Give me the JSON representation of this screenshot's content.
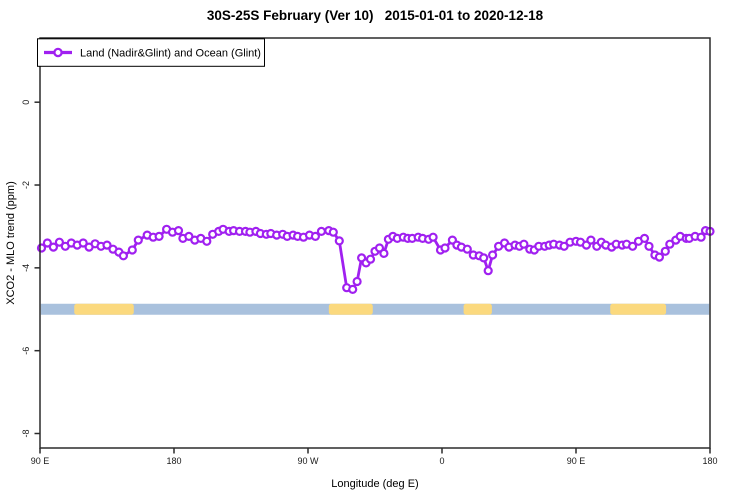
{
  "title": "30S-25S February (Ver 10)   2015-01-01 to 2020-12-18",
  "legend": {
    "label": "Land (Nadir&Glint) and Ocean (Glint)",
    "marker_color": "#A020F0"
  },
  "axes": {
    "x_label": "Longitude (deg E)",
    "y_label": "XCO2 - MLO trend (ppm)",
    "x_ticks": [
      {
        "x": 90,
        "label": "90 E"
      },
      {
        "x": 180,
        "label": "180"
      },
      {
        "x": 270,
        "label": "90 W"
      },
      {
        "x": 360,
        "label": "0"
      },
      {
        "x": 450,
        "label": "90 E"
      },
      {
        "x": 540,
        "label": "180"
      }
    ],
    "y_ticks": [
      {
        "y": 0,
        "label": "0"
      },
      {
        "y": -2,
        "label": "-2"
      },
      {
        "y": -4,
        "label": "-4"
      },
      {
        "y": -6,
        "label": "-6"
      },
      {
        "y": -8,
        "label": "-8"
      }
    ]
  },
  "chart_data": {
    "type": "line",
    "title": "30S-25S February (Ver 10)   2015-01-01 to 2020-12-18",
    "xlabel": "Longitude (deg E)",
    "ylabel": "XCO2 - MLO trend (ppm)",
    "xlim": [
      90,
      540
    ],
    "ylim": [
      -8.35,
      1.55
    ],
    "x_axis_note": "x axis is longitude wrapping eastward: 90E, 180, 90W, 0, 90E, 180",
    "grid": false,
    "legend_position": "top-left",
    "series": [
      {
        "name": "Land (Nadir&Glint) and Ocean (Glint)",
        "color": "#A020F0",
        "marker": "open-circle",
        "x": [
          91,
          95,
          99,
          103,
          107,
          111,
          115,
          119,
          123,
          127,
          131,
          135,
          139,
          143,
          146,
          152,
          156,
          162,
          166,
          170,
          175,
          179,
          183,
          186,
          190,
          194,
          198,
          202,
          206,
          210,
          213,
          217,
          220,
          224,
          228,
          231,
          235,
          238,
          242,
          245,
          249,
          253,
          256,
          260,
          263,
          267,
          271,
          275,
          279,
          284,
          287,
          291,
          296,
          300,
          303,
          306,
          309,
          312,
          315,
          318,
          321,
          324,
          327,
          330,
          334,
          337,
          340,
          344,
          347,
          351,
          354,
          359,
          362,
          367,
          370,
          373,
          377,
          381,
          385,
          388,
          391,
          394,
          398,
          402,
          405,
          409,
          412,
          415,
          419,
          422,
          425,
          429,
          432,
          435,
          439,
          442,
          446,
          450,
          453,
          457,
          460,
          464,
          467,
          470,
          474,
          477,
          481,
          484,
          488,
          492,
          496,
          499,
          503,
          506,
          510,
          513,
          517,
          520,
          524,
          526,
          530,
          534,
          537,
          540
        ],
        "y": [
          -3.52,
          -3.4,
          -3.5,
          -3.38,
          -3.48,
          -3.4,
          -3.45,
          -3.4,
          -3.5,
          -3.42,
          -3.48,
          -3.45,
          -3.55,
          -3.62,
          -3.71,
          -3.57,
          -3.33,
          -3.21,
          -3.26,
          -3.24,
          -3.07,
          -3.14,
          -3.1,
          -3.29,
          -3.24,
          -3.33,
          -3.29,
          -3.36,
          -3.19,
          -3.12,
          -3.07,
          -3.12,
          -3.1,
          -3.12,
          -3.12,
          -3.14,
          -3.12,
          -3.17,
          -3.19,
          -3.17,
          -3.21,
          -3.19,
          -3.24,
          -3.21,
          -3.24,
          -3.26,
          -3.21,
          -3.24,
          -3.12,
          -3.1,
          -3.14,
          -3.35,
          -4.48,
          -4.52,
          -4.33,
          -3.76,
          -3.88,
          -3.79,
          -3.6,
          -3.52,
          -3.65,
          -3.31,
          -3.24,
          -3.29,
          -3.26,
          -3.29,
          -3.29,
          -3.26,
          -3.29,
          -3.31,
          -3.26,
          -3.57,
          -3.52,
          -3.33,
          -3.45,
          -3.5,
          -3.55,
          -3.69,
          -3.71,
          -3.76,
          -4.07,
          -3.69,
          -3.48,
          -3.4,
          -3.5,
          -3.45,
          -3.48,
          -3.43,
          -3.55,
          -3.57,
          -3.48,
          -3.48,
          -3.45,
          -3.43,
          -3.45,
          -3.48,
          -3.38,
          -3.36,
          -3.38,
          -3.45,
          -3.33,
          -3.48,
          -3.38,
          -3.45,
          -3.5,
          -3.43,
          -3.45,
          -3.43,
          -3.48,
          -3.36,
          -3.29,
          -3.48,
          -3.69,
          -3.74,
          -3.6,
          -3.43,
          -3.33,
          -3.24,
          -3.29,
          -3.29,
          -3.24,
          -3.26,
          -3.1,
          -3.12
        ]
      }
    ],
    "surface_band": {
      "description": "land/ocean strip drawn at y = -5",
      "y_value": -5,
      "ocean_color": "#A9C1DD",
      "land_color": "#FBD97E",
      "land_segments_x": [
        [
          113,
          153
        ],
        [
          284,
          313.5
        ],
        [
          374.5,
          393.5
        ],
        [
          473,
          510.5
        ]
      ]
    }
  }
}
